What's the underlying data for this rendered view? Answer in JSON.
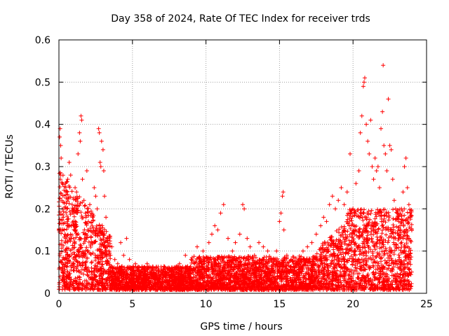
{
  "chart_data": {
    "type": "scatter",
    "title": "Day 358 of 2024, Rate Of TEC Index for receiver trds",
    "xlabel": "GPS time / hours",
    "ylabel": "ROTI / TECUs",
    "xlim": [
      0,
      25
    ],
    "ylim": [
      0,
      0.6
    ],
    "xticks": [
      0,
      5,
      10,
      15,
      20,
      25
    ],
    "xtick_labels": [
      "0",
      "5",
      "10",
      "15",
      "20",
      "25"
    ],
    "yticks": [
      0,
      0.1,
      0.2,
      0.3,
      0.4,
      0.5,
      0.6
    ],
    "ytick_labels": [
      "0",
      "0.1",
      "0.2",
      "0.3",
      "0.4",
      "0.5",
      "0.6"
    ],
    "grid": true,
    "marker": "+",
    "series": [
      {
        "name": "ROTI",
        "color": "#ff0000",
        "points": [
          [
            0.05,
            0.37
          ],
          [
            0.08,
            0.39
          ],
          [
            0.12,
            0.35
          ],
          [
            0.15,
            0.32
          ],
          [
            0.1,
            0.27
          ],
          [
            0.2,
            0.22
          ],
          [
            0.3,
            0.18
          ],
          [
            0.35,
            0.15
          ],
          [
            0.45,
            0.26
          ],
          [
            0.55,
            0.24
          ],
          [
            0.6,
            0.27
          ],
          [
            0.7,
            0.31
          ],
          [
            0.8,
            0.28
          ],
          [
            0.9,
            0.21
          ],
          [
            1.0,
            0.19
          ],
          [
            1.1,
            0.25
          ],
          [
            1.2,
            0.24
          ],
          [
            1.3,
            0.33
          ],
          [
            1.4,
            0.38
          ],
          [
            1.5,
            0.42
          ],
          [
            1.55,
            0.41
          ],
          [
            1.45,
            0.36
          ],
          [
            1.6,
            0.27
          ],
          [
            1.7,
            0.22
          ],
          [
            1.8,
            0.19
          ],
          [
            1.9,
            0.29
          ],
          [
            2.0,
            0.17
          ],
          [
            2.1,
            0.21
          ],
          [
            2.2,
            0.19
          ],
          [
            2.3,
            0.18
          ],
          [
            2.4,
            0.25
          ],
          [
            2.5,
            0.23
          ],
          [
            2.6,
            0.2
          ],
          [
            2.7,
            0.39
          ],
          [
            2.75,
            0.38
          ],
          [
            2.8,
            0.31
          ],
          [
            2.85,
            0.3
          ],
          [
            2.9,
            0.36
          ],
          [
            3.0,
            0.34
          ],
          [
            3.05,
            0.29
          ],
          [
            3.1,
            0.23
          ],
          [
            3.2,
            0.18
          ],
          [
            3.3,
            0.12
          ],
          [
            3.4,
            0.1
          ],
          [
            3.5,
            0.09
          ],
          [
            3.6,
            0.11
          ],
          [
            3.8,
            0.08
          ],
          [
            4.0,
            0.07
          ],
          [
            4.2,
            0.12
          ],
          [
            4.4,
            0.09
          ],
          [
            4.6,
            0.13
          ],
          [
            4.8,
            0.08
          ],
          [
            5.0,
            0.06
          ],
          [
            5.2,
            0.07
          ],
          [
            5.5,
            0.05
          ],
          [
            5.8,
            0.06
          ],
          [
            6.0,
            0.07
          ],
          [
            6.3,
            0.05
          ],
          [
            6.6,
            0.06
          ],
          [
            7.0,
            0.05
          ],
          [
            7.4,
            0.06
          ],
          [
            7.8,
            0.05
          ],
          [
            8.2,
            0.07
          ],
          [
            8.6,
            0.09
          ],
          [
            9.0,
            0.08
          ],
          [
            9.4,
            0.11
          ],
          [
            9.8,
            0.1
          ],
          [
            10.2,
            0.12
          ],
          [
            10.4,
            0.14
          ],
          [
            10.6,
            0.16
          ],
          [
            10.8,
            0.15
          ],
          [
            11.0,
            0.19
          ],
          [
            11.2,
            0.21
          ],
          [
            11.5,
            0.13
          ],
          [
            11.8,
            0.1
          ],
          [
            12.0,
            0.12
          ],
          [
            12.3,
            0.14
          ],
          [
            12.5,
            0.21
          ],
          [
            12.6,
            0.2
          ],
          [
            12.8,
            0.13
          ],
          [
            13.0,
            0.11
          ],
          [
            13.3,
            0.09
          ],
          [
            13.6,
            0.12
          ],
          [
            13.9,
            0.11
          ],
          [
            14.2,
            0.1
          ],
          [
            14.5,
            0.08
          ],
          [
            14.8,
            0.1
          ],
          [
            15.0,
            0.17
          ],
          [
            15.1,
            0.19
          ],
          [
            15.2,
            0.23
          ],
          [
            15.25,
            0.24
          ],
          [
            15.3,
            0.15
          ],
          [
            15.5,
            0.09
          ],
          [
            15.8,
            0.08
          ],
          [
            16.0,
            0.06
          ],
          [
            16.3,
            0.08
          ],
          [
            16.6,
            0.1
          ],
          [
            16.9,
            0.11
          ],
          [
            17.2,
            0.12
          ],
          [
            17.5,
            0.14
          ],
          [
            17.8,
            0.16
          ],
          [
            18.0,
            0.18
          ],
          [
            18.2,
            0.17
          ],
          [
            18.4,
            0.21
          ],
          [
            18.6,
            0.23
          ],
          [
            18.8,
            0.2
          ],
          [
            19.0,
            0.22
          ],
          [
            19.2,
            0.25
          ],
          [
            19.4,
            0.21
          ],
          [
            19.6,
            0.24
          ],
          [
            19.8,
            0.33
          ],
          [
            20.0,
            0.2
          ],
          [
            20.2,
            0.26
          ],
          [
            20.4,
            0.29
          ],
          [
            20.5,
            0.38
          ],
          [
            20.6,
            0.42
          ],
          [
            20.7,
            0.49
          ],
          [
            20.75,
            0.5
          ],
          [
            20.8,
            0.51
          ],
          [
            20.9,
            0.4
          ],
          [
            21.0,
            0.36
          ],
          [
            21.1,
            0.33
          ],
          [
            21.2,
            0.41
          ],
          [
            21.3,
            0.3
          ],
          [
            21.4,
            0.27
          ],
          [
            21.5,
            0.32
          ],
          [
            21.6,
            0.29
          ],
          [
            21.7,
            0.3
          ],
          [
            21.8,
            0.25
          ],
          [
            21.9,
            0.39
          ],
          [
            22.0,
            0.43
          ],
          [
            22.05,
            0.54
          ],
          [
            22.1,
            0.35
          ],
          [
            22.2,
            0.33
          ],
          [
            22.3,
            0.29
          ],
          [
            22.4,
            0.46
          ],
          [
            22.5,
            0.35
          ],
          [
            22.6,
            0.34
          ],
          [
            22.7,
            0.27
          ],
          [
            22.8,
            0.22
          ],
          [
            22.9,
            0.2
          ],
          [
            23.0,
            0.19
          ],
          [
            23.1,
            0.17
          ],
          [
            23.2,
            0.16
          ],
          [
            23.3,
            0.2
          ],
          [
            23.4,
            0.24
          ],
          [
            23.5,
            0.3
          ],
          [
            23.6,
            0.32
          ],
          [
            23.7,
            0.25
          ],
          [
            23.8,
            0.21
          ],
          [
            23.9,
            0.18
          ],
          [
            24.0,
            0.15
          ]
        ]
      }
    ]
  }
}
